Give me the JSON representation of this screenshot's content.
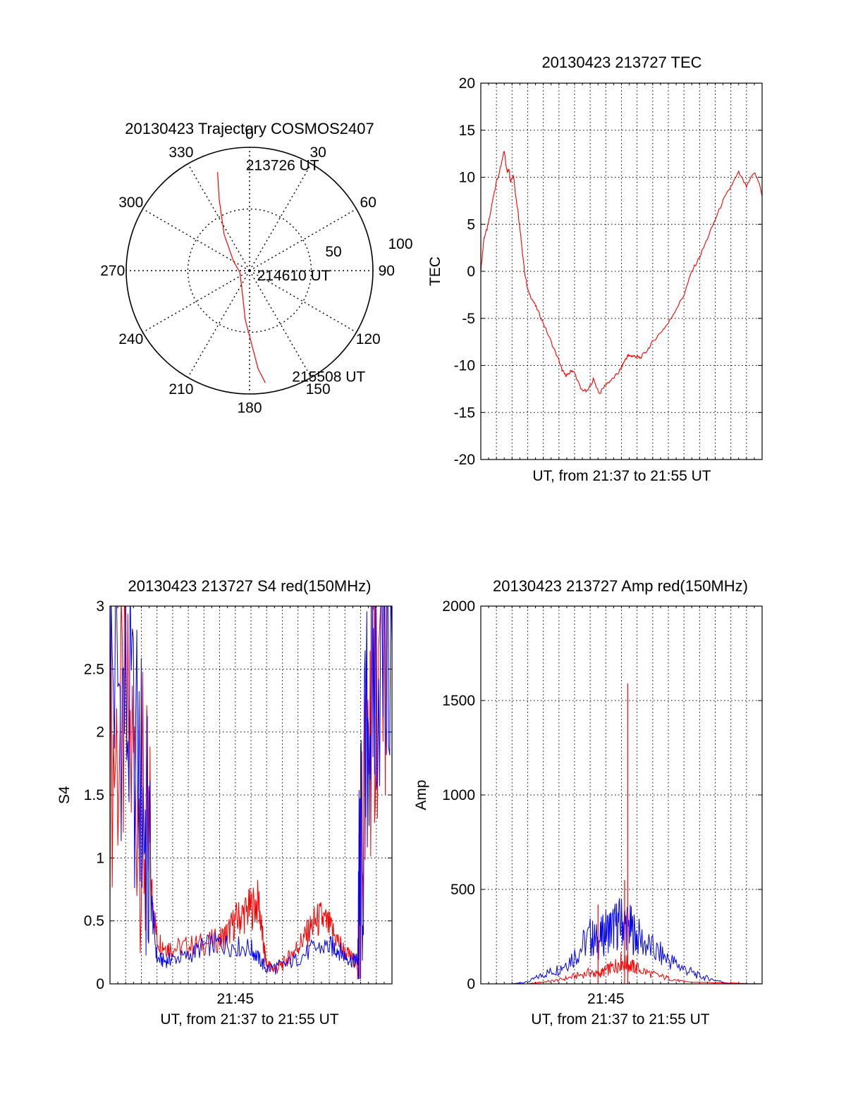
{
  "chart_data": [
    {
      "id": "trajectory",
      "type": "scatter",
      "projection": "polar",
      "title": "20130423 Trajectory COSMOS2407",
      "azimuth_labels": [
        "0",
        "30",
        "60",
        "90",
        "120",
        "150",
        "180",
        "210",
        "240",
        "270",
        "300",
        "330"
      ],
      "radial_ticks": [
        {
          "value": 50,
          "label": "50"
        },
        {
          "value": 100,
          "label": "100"
        }
      ],
      "r_max": 100,
      "series": [
        {
          "color": "#ff0000",
          "points": [
            {
              "az": 342,
              "r": 84
            },
            {
              "az": 337,
              "r": 63
            },
            {
              "az": 325,
              "r": 36
            },
            {
              "az": 300,
              "r": 15
            },
            {
              "az": 260,
              "r": 8
            },
            {
              "az": 205,
              "r": 15
            },
            {
              "az": 185,
              "r": 40
            },
            {
              "az": 175,
              "r": 80
            },
            {
              "az": 172,
              "r": 92
            }
          ]
        }
      ],
      "annotations": [
        {
          "text": "213726 UT",
          "az": 358,
          "r": 86
        },
        {
          "text": "214610 UT",
          "az": 120,
          "r": 7
        },
        {
          "text": "215508 UT",
          "az": 158,
          "r": 92
        }
      ]
    },
    {
      "id": "tec",
      "type": "line",
      "title": "20130423 213727 TEC",
      "xlabel": "UT, from 21:37 to 21:55 UT",
      "ylabel": "TEC",
      "xlim": [
        0,
        18
      ],
      "ylim": [
        -20,
        20
      ],
      "yticks": [
        "-20",
        "-15",
        "-10",
        "-5",
        "0",
        "5",
        "10",
        "15",
        "20"
      ],
      "grid": true,
      "series": [
        {
          "color": "#ff0000",
          "x": [
            0,
            0.2,
            0.4,
            0.6,
            0.8,
            1.0,
            1.2,
            1.5,
            1.6,
            1.7,
            1.8,
            1.9,
            2.0,
            2.1,
            2.2,
            2.4,
            2.6,
            2.8,
            3.0,
            3.3,
            3.6,
            4.0,
            4.5,
            5.0,
            5.2,
            5.4,
            5.6,
            5.8,
            6.0,
            6.4,
            6.8,
            7.2,
            7.6,
            8.0,
            8.4,
            8.8,
            9.0,
            9.2,
            9.4,
            9.6,
            9.8,
            10.0,
            10.2,
            10.6,
            11.0,
            11.5,
            12.0,
            12.5,
            13.0,
            13.5,
            14.0,
            14.5,
            15.0,
            15.5,
            16.0,
            16.5,
            17.0,
            17.5,
            17.8,
            18.0
          ],
          "y": [
            0,
            3.5,
            4.5,
            6.0,
            8.0,
            9.5,
            10.5,
            12.8,
            11.5,
            10.5,
            11.0,
            9.5,
            10.0,
            10.2,
            8.5,
            6.0,
            3.0,
            0,
            -2.0,
            -3.0,
            -4.0,
            -5.5,
            -7.5,
            -9.5,
            -10.5,
            -11.0,
            -11.0,
            -10.5,
            -10.8,
            -12.5,
            -12.8,
            -11.5,
            -13.0,
            -12.0,
            -11.5,
            -10.8,
            -10.2,
            -9.5,
            -9.0,
            -9.0,
            -9.0,
            -9.1,
            -9.2,
            -8.5,
            -7.5,
            -6.5,
            -5.5,
            -4.0,
            -2.5,
            0,
            1.5,
            3.5,
            5.5,
            7.5,
            9.0,
            10.5,
            9.0,
            10.5,
            9.5,
            8.0
          ]
        }
      ]
    },
    {
      "id": "s4",
      "type": "line",
      "title": "20130423 213727 S4 red(150MHz)",
      "xlabel": "UT, from 21:37 to 21:55 UT",
      "ylabel": "S4",
      "xlim": [
        0,
        18
      ],
      "ylim": [
        0,
        3
      ],
      "xtick": {
        "value": 8,
        "label": "21:45"
      },
      "yticks": [
        "0",
        "0.5",
        "1",
        "1.5",
        "2",
        "2.5",
        "3"
      ],
      "grid": true,
      "series": [
        {
          "color": "#ff0000",
          "x": [
            0,
            1.0,
            2.0,
            2.6,
            3.0,
            3.5,
            4.0,
            5.0,
            6.0,
            7.0,
            7.5,
            8.0,
            8.5,
            9.0,
            9.5,
            9.8,
            10.0,
            10.5,
            11.0,
            11.5,
            12.0,
            12.5,
            13.0,
            13.5,
            14.0,
            14.5,
            15.0,
            15.5,
            15.8,
            16.0,
            16.5,
            17.0,
            18.0
          ],
          "y": [
            1.8,
            2.0,
            1.4,
            0.8,
            0.35,
            0.3,
            0.28,
            0.3,
            0.32,
            0.35,
            0.4,
            0.5,
            0.55,
            0.6,
            0.65,
            0.3,
            0.15,
            0.12,
            0.15,
            0.22,
            0.3,
            0.38,
            0.48,
            0.52,
            0.45,
            0.35,
            0.25,
            0.2,
            0.15,
            0.8,
            2.0,
            2.4,
            2.8
          ]
        },
        {
          "color": "#0000ff",
          "x": [
            0,
            1.0,
            2.0,
            2.6,
            3.0,
            3.5,
            4.0,
            5.0,
            6.0,
            7.0,
            8.0,
            9.0,
            9.5,
            10.0,
            11.0,
            12.0,
            13.0,
            14.0,
            14.5,
            15.0,
            15.5,
            15.8,
            16.0,
            16.5,
            17.0,
            18.0
          ],
          "y": [
            2.5,
            2.2,
            1.6,
            0.7,
            0.2,
            0.18,
            0.2,
            0.22,
            0.3,
            0.32,
            0.3,
            0.28,
            0.2,
            0.12,
            0.14,
            0.2,
            0.28,
            0.3,
            0.28,
            0.22,
            0.18,
            0.2,
            0.8,
            2.2,
            2.5,
            2.7
          ]
        }
      ]
    },
    {
      "id": "amp",
      "type": "line",
      "title": "20130423 213727 Amp red(150MHz)",
      "xlabel": "UT, from 21:37 to 21:55 UT",
      "ylabel": "Amp",
      "xlim": [
        0,
        18
      ],
      "ylim": [
        0,
        2000
      ],
      "xtick": {
        "value": 8,
        "label": "21:45"
      },
      "yticks": [
        "0",
        "500",
        "1000",
        "1500",
        "2000"
      ],
      "grid": true,
      "series": [
        {
          "color": "#0000ff",
          "x": [
            0,
            2.0,
            3.0,
            4.0,
            5.0,
            6.0,
            7.0,
            7.5,
            8.0,
            8.5,
            9.0,
            9.5,
            10.0,
            11.0,
            12.0,
            13.0,
            14.0,
            15.0,
            16.0,
            18.0
          ],
          "y": [
            0,
            0,
            10,
            50,
            80,
            150,
            250,
            220,
            280,
            300,
            330,
            300,
            250,
            180,
            130,
            80,
            40,
            20,
            0,
            0
          ]
        },
        {
          "color": "#ff0000",
          "x": [
            0,
            3.0,
            4.0,
            5.0,
            6.0,
            7.0,
            7.5,
            8.0,
            8.5,
            9.0,
            9.5,
            10.0,
            11.0,
            12.0,
            13.0,
            18.0
          ],
          "y": [
            0,
            0,
            10,
            20,
            40,
            60,
            50,
            70,
            90,
            120,
            100,
            80,
            50,
            30,
            10,
            0
          ]
        }
      ],
      "peaks": [
        {
          "color": "#ff0000",
          "x": 9.4,
          "y": 1590
        },
        {
          "color": "#ff0000",
          "x": 9.2,
          "y": 550
        },
        {
          "color": "#ff0000",
          "x": 7.5,
          "y": 420
        }
      ]
    }
  ]
}
